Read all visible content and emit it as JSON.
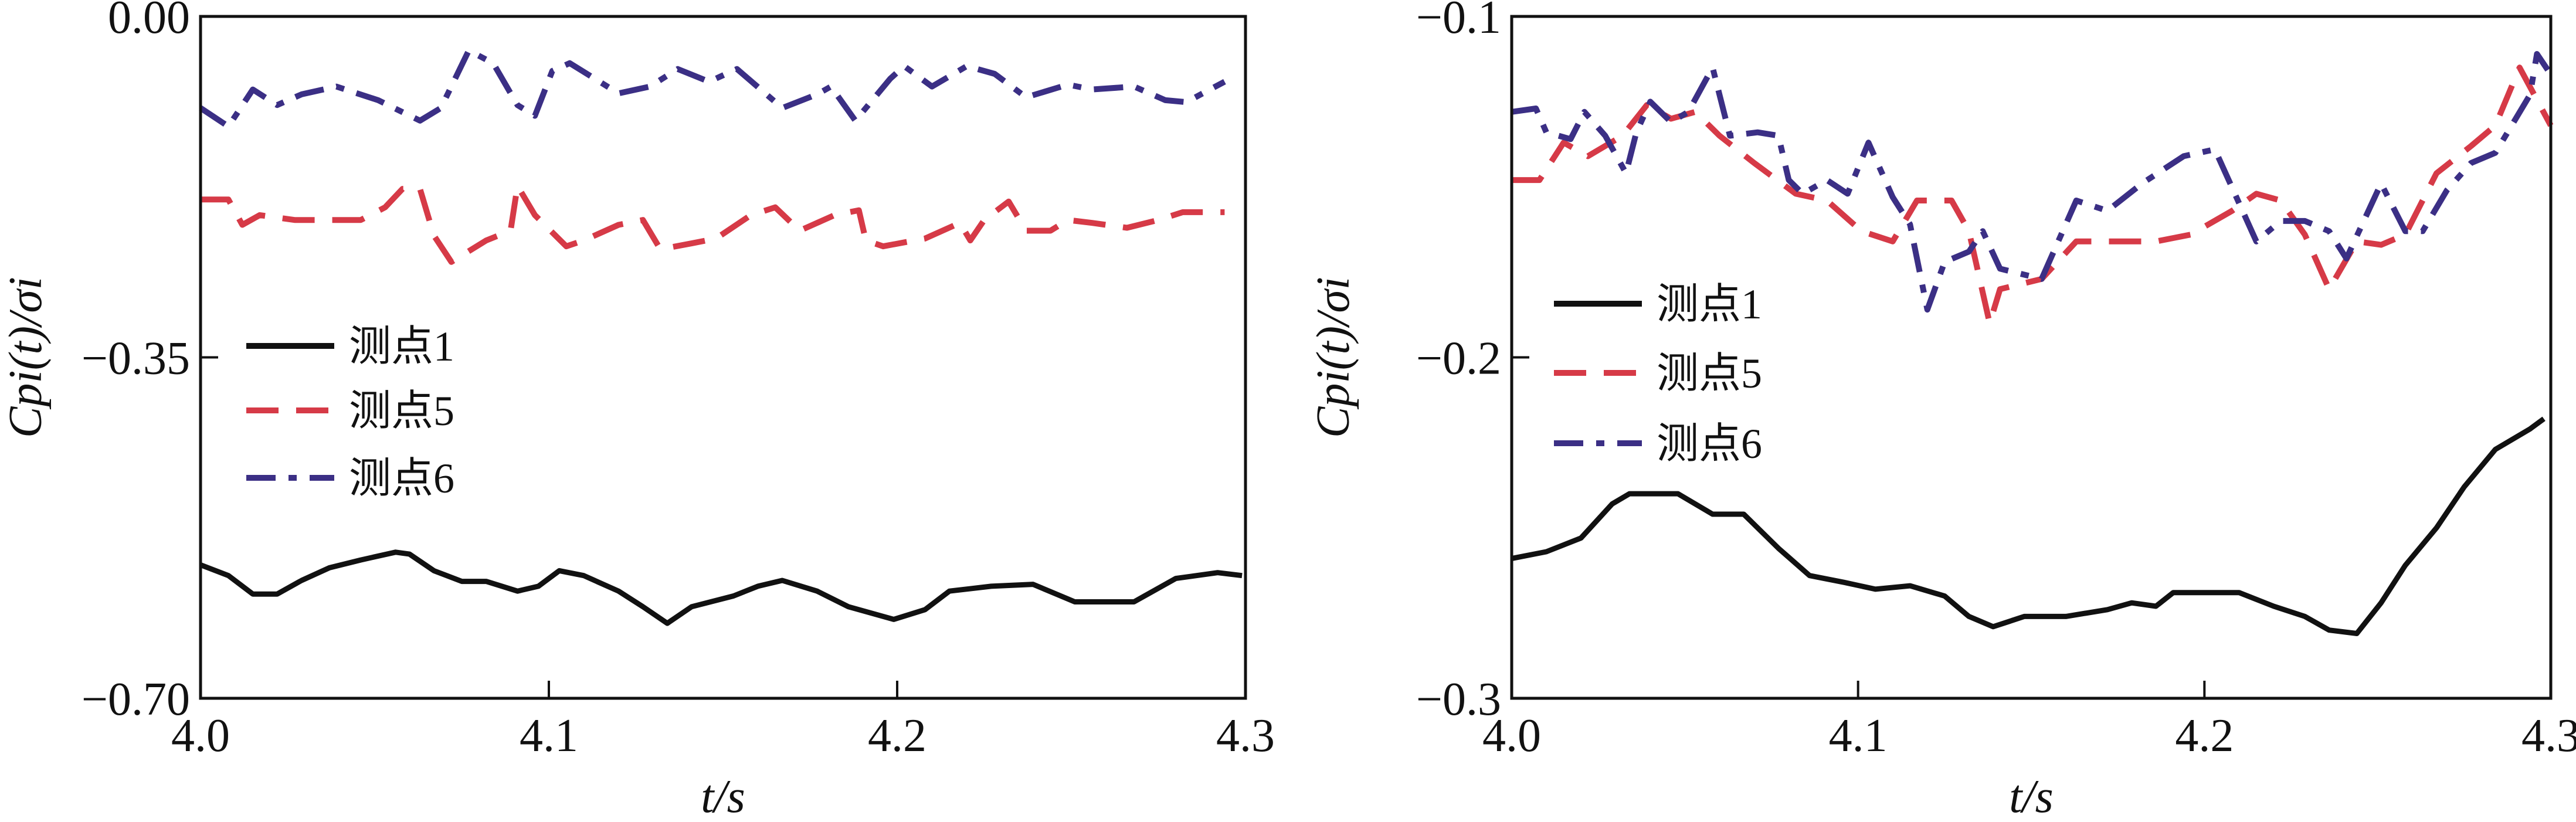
{
  "chart_data": [
    {
      "type": "line",
      "xlabel": "t/s",
      "ylabel": "Cpi(t)/σi",
      "xlim": [
        4.0,
        4.3
      ],
      "ylim": [
        -0.7,
        0.0
      ],
      "xticks": [
        "4.0",
        "4.1",
        "4.2",
        "4.3"
      ],
      "yticks": [
        "0.00",
        "-0.35",
        "-0.70"
      ],
      "legend_position": "center-left",
      "series": [
        {
          "name": "测点1",
          "style": "solid",
          "color": "#111111",
          "x": [
            4.0,
            4.008,
            4.015,
            4.022,
            4.029,
            4.037,
            4.046,
            4.056,
            4.06,
            4.067,
            4.075,
            4.082,
            4.091,
            4.097,
            4.103,
            4.11,
            4.12,
            4.127,
            4.134,
            4.141,
            4.153,
            4.16,
            4.167,
            4.177,
            4.186,
            4.199,
            4.208,
            4.215,
            4.227,
            4.239,
            4.251,
            4.268,
            4.28,
            4.292,
            4.299
          ],
          "y": [
            -0.563,
            -0.574,
            -0.593,
            -0.593,
            -0.579,
            -0.566,
            -0.558,
            -0.55,
            -0.552,
            -0.569,
            -0.58,
            -0.58,
            -0.59,
            -0.585,
            -0.569,
            -0.574,
            -0.59,
            -0.606,
            -0.623,
            -0.606,
            -0.595,
            -0.585,
            -0.579,
            -0.59,
            -0.606,
            -0.619,
            -0.609,
            -0.59,
            -0.585,
            -0.583,
            -0.601,
            -0.601,
            -0.577,
            -0.571,
            -0.574
          ]
        },
        {
          "name": "测点5",
          "style": "dashed",
          "color": "#d63a47",
          "x": [
            4.0,
            4.008,
            4.012,
            4.017,
            4.027,
            4.046,
            4.053,
            4.058,
            4.063,
            4.067,
            4.072,
            4.082,
            4.089,
            4.091,
            4.096,
            4.105,
            4.11,
            4.12,
            4.127,
            4.132,
            4.141,
            4.148,
            4.158,
            4.165,
            4.172,
            4.182,
            4.189,
            4.191,
            4.196,
            4.208,
            4.218,
            4.221,
            4.225,
            4.232,
            4.237,
            4.244,
            4.249,
            4.256,
            4.266,
            4.275,
            4.282,
            4.294
          ],
          "y": [
            -0.188,
            -0.188,
            -0.214,
            -0.204,
            -0.209,
            -0.209,
            -0.196,
            -0.177,
            -0.177,
            -0.225,
            -0.252,
            -0.23,
            -0.22,
            -0.174,
            -0.204,
            -0.236,
            -0.23,
            -0.214,
            -0.209,
            -0.239,
            -0.233,
            -0.228,
            -0.204,
            -0.196,
            -0.22,
            -0.204,
            -0.199,
            -0.23,
            -0.236,
            -0.228,
            -0.212,
            -0.23,
            -0.209,
            -0.19,
            -0.22,
            -0.22,
            -0.209,
            -0.212,
            -0.217,
            -0.209,
            -0.201,
            -0.201
          ]
        },
        {
          "name": "测点6",
          "style": "dash-dot",
          "color": "#3b2f85",
          "x": [
            4.0,
            4.008,
            4.015,
            4.022,
            4.029,
            4.039,
            4.051,
            4.063,
            4.069,
            4.077,
            4.084,
            4.091,
            4.096,
            4.101,
            4.106,
            4.12,
            4.129,
            4.137,
            4.146,
            4.154,
            4.167,
            4.177,
            4.181,
            4.188,
            4.198,
            4.202,
            4.21,
            4.22,
            4.228,
            4.237,
            4.249,
            4.256,
            4.268,
            4.277,
            4.283,
            4.294
          ],
          "y": [
            -0.094,
            -0.113,
            -0.075,
            -0.091,
            -0.08,
            -0.072,
            -0.086,
            -0.107,
            -0.094,
            -0.035,
            -0.048,
            -0.091,
            -0.102,
            -0.056,
            -0.048,
            -0.079,
            -0.072,
            -0.054,
            -0.067,
            -0.054,
            -0.094,
            -0.08,
            -0.072,
            -0.107,
            -0.064,
            -0.051,
            -0.072,
            -0.051,
            -0.059,
            -0.083,
            -0.07,
            -0.075,
            -0.072,
            -0.086,
            -0.088,
            -0.067
          ]
        }
      ]
    },
    {
      "type": "line",
      "xlabel": "t/s",
      "ylabel": "Cpi(t)/σi",
      "xlim": [
        4.0,
        4.3
      ],
      "ylim": [
        -0.3,
        -0.1
      ],
      "xticks": [
        "4.0",
        "4.1",
        "4.2",
        "4.3"
      ],
      "yticks": [
        "-0.1",
        "-0.2",
        "-0.3"
      ],
      "legend_position": "center-left",
      "series": [
        {
          "name": "测点1",
          "style": "solid",
          "color": "#111111",
          "x": [
            4.0,
            4.01,
            4.02,
            4.029,
            4.034,
            4.041,
            4.048,
            4.058,
            4.067,
            4.077,
            4.086,
            4.096,
            4.105,
            4.115,
            4.125,
            4.132,
            4.139,
            4.148,
            4.16,
            4.172,
            4.179,
            4.186,
            4.191,
            4.198,
            4.21,
            4.22,
            4.229,
            4.236,
            4.244,
            4.251,
            4.258,
            4.267,
            4.275,
            4.284,
            4.294,
            4.298
          ],
          "y": [
            -0.259,
            -0.257,
            -0.253,
            -0.243,
            -0.24,
            -0.24,
            -0.24,
            -0.246,
            -0.246,
            -0.256,
            -0.264,
            -0.266,
            -0.268,
            -0.267,
            -0.27,
            -0.276,
            -0.279,
            -0.276,
            -0.276,
            -0.274,
            -0.272,
            -0.273,
            -0.269,
            -0.269,
            -0.269,
            -0.273,
            -0.276,
            -0.28,
            -0.281,
            -0.272,
            -0.261,
            -0.25,
            -0.238,
            -0.227,
            -0.221,
            -0.218
          ]
        },
        {
          "name": "测点5",
          "style": "dashed",
          "color": "#d63a47",
          "x": [
            4.0,
            4.008,
            4.015,
            4.022,
            4.032,
            4.039,
            4.046,
            4.053,
            4.06,
            4.07,
            4.082,
            4.091,
            4.101,
            4.11,
            4.117,
            4.127,
            4.132,
            4.138,
            4.141,
            4.153,
            4.163,
            4.175,
            4.186,
            4.196,
            4.208,
            4.215,
            4.222,
            4.229,
            4.236,
            4.244,
            4.251,
            4.258,
            4.267,
            4.277,
            4.284,
            4.291,
            4.3
          ],
          "y": [
            -0.148,
            -0.148,
            -0.137,
            -0.141,
            -0.135,
            -0.126,
            -0.13,
            -0.128,
            -0.135,
            -0.143,
            -0.152,
            -0.154,
            -0.163,
            -0.166,
            -0.154,
            -0.154,
            -0.163,
            -0.19,
            -0.18,
            -0.177,
            -0.166,
            -0.166,
            -0.166,
            -0.164,
            -0.157,
            -0.152,
            -0.154,
            -0.164,
            -0.18,
            -0.166,
            -0.167,
            -0.164,
            -0.146,
            -0.138,
            -0.132,
            -0.115,
            -0.132
          ]
        },
        {
          "name": "测点6",
          "style": "dash-dot",
          "color": "#3b2f85",
          "x": [
            4.0,
            4.007,
            4.01,
            4.017,
            4.021,
            4.027,
            4.033,
            4.036,
            4.04,
            4.046,
            4.051,
            4.058,
            4.063,
            4.071,
            4.077,
            4.08,
            4.084,
            4.091,
            4.097,
            4.103,
            4.11,
            4.115,
            4.12,
            4.125,
            4.132,
            4.136,
            4.141,
            4.153,
            4.163,
            4.172,
            4.182,
            4.194,
            4.203,
            4.215,
            4.222,
            4.229,
            4.236,
            4.241,
            4.251,
            4.258,
            4.263,
            4.27,
            4.277,
            4.284,
            4.294,
            4.296,
            4.3
          ],
          "y": [
            -0.128,
            -0.127,
            -0.134,
            -0.136,
            -0.128,
            -0.135,
            -0.146,
            -0.134,
            -0.125,
            -0.131,
            -0.128,
            -0.115,
            -0.135,
            -0.134,
            -0.135,
            -0.148,
            -0.152,
            -0.148,
            -0.152,
            -0.137,
            -0.153,
            -0.161,
            -0.186,
            -0.172,
            -0.169,
            -0.163,
            -0.174,
            -0.177,
            -0.154,
            -0.157,
            -0.149,
            -0.141,
            -0.139,
            -0.166,
            -0.16,
            -0.16,
            -0.163,
            -0.171,
            -0.149,
            -0.163,
            -0.163,
            -0.151,
            -0.143,
            -0.14,
            -0.123,
            -0.111,
            -0.117
          ]
        }
      ]
    }
  ]
}
